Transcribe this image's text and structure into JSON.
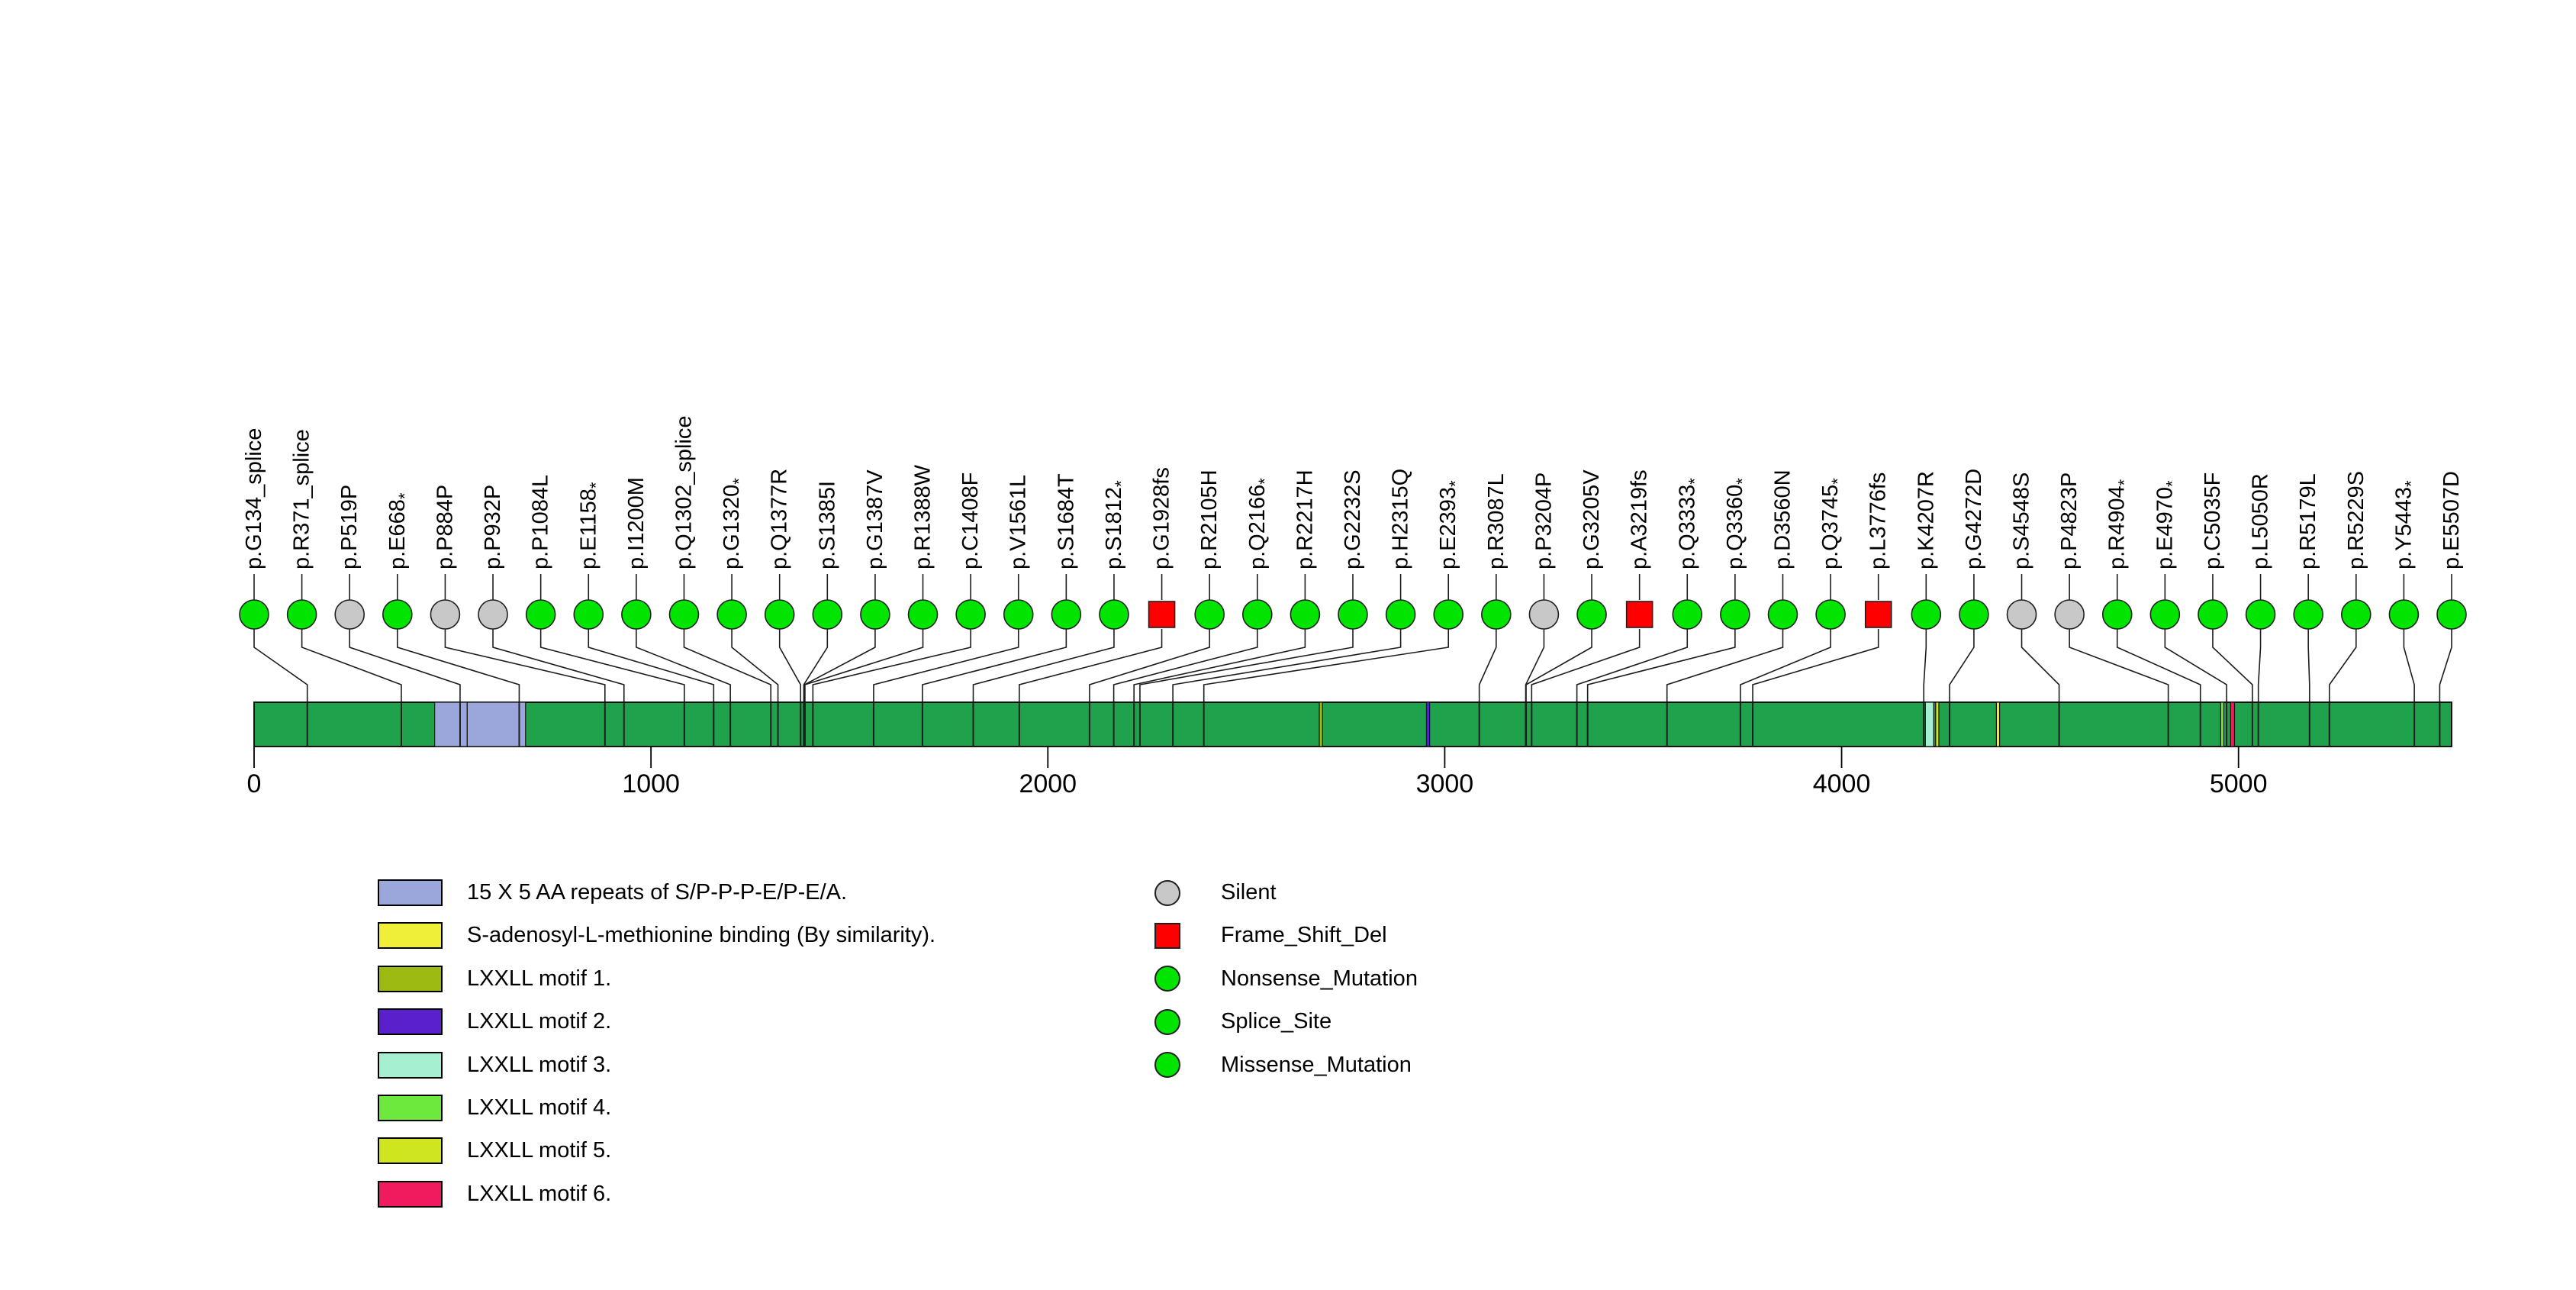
{
  "chart_data": {
    "type": "lollipop",
    "title": "",
    "protein_length": 5537,
    "axis_ticks": [
      0,
      1000,
      2000,
      3000,
      4000,
      5000
    ],
    "backbone_color": "#1FA24B",
    "mutation_type_colors": {
      "Silent": "#C8C8C8",
      "Frame_Shift_Del": "#FE0000",
      "Nonsense_Mutation": "#00E400",
      "Splice_Site": "#00E400",
      "Missense_Mutation": "#00E400"
    },
    "mutation_type_shapes": {
      "Silent": "circle",
      "Frame_Shift_Del": "square",
      "Nonsense_Mutation": "circle",
      "Splice_Site": "circle",
      "Missense_Mutation": "circle"
    },
    "mutations": [
      {
        "label": "p.G134_splice",
        "position": 134,
        "type": "Splice_Site"
      },
      {
        "label": "p.R371_splice",
        "position": 371,
        "type": "Splice_Site"
      },
      {
        "label": "p.P519P",
        "position": 519,
        "type": "Silent"
      },
      {
        "label": "p.E668*",
        "position": 668,
        "type": "Nonsense_Mutation"
      },
      {
        "label": "p.P884P",
        "position": 884,
        "type": "Silent"
      },
      {
        "label": "p.P932P",
        "position": 932,
        "type": "Silent"
      },
      {
        "label": "p.P1084L",
        "position": 1084,
        "type": "Missense_Mutation"
      },
      {
        "label": "p.E1158*",
        "position": 1158,
        "type": "Nonsense_Mutation"
      },
      {
        "label": "p.I1200M",
        "position": 1200,
        "type": "Missense_Mutation"
      },
      {
        "label": "p.Q1302_splice",
        "position": 1302,
        "type": "Splice_Site"
      },
      {
        "label": "p.G1320*",
        "position": 1320,
        "type": "Nonsense_Mutation"
      },
      {
        "label": "p.Q1377R",
        "position": 1377,
        "type": "Missense_Mutation"
      },
      {
        "label": "p.S1385I",
        "position": 1385,
        "type": "Missense_Mutation"
      },
      {
        "label": "p.G1387V",
        "position": 1387,
        "type": "Missense_Mutation"
      },
      {
        "label": "p.R1388W",
        "position": 1388,
        "type": "Missense_Mutation"
      },
      {
        "label": "p.C1408F",
        "position": 1408,
        "type": "Missense_Mutation"
      },
      {
        "label": "p.V1561L",
        "position": 1561,
        "type": "Missense_Mutation"
      },
      {
        "label": "p.S1684T",
        "position": 1684,
        "type": "Missense_Mutation"
      },
      {
        "label": "p.S1812*",
        "position": 1812,
        "type": "Nonsense_Mutation"
      },
      {
        "label": "p.G1928fs",
        "position": 1928,
        "type": "Frame_Shift_Del"
      },
      {
        "label": "p.R2105H",
        "position": 2105,
        "type": "Missense_Mutation"
      },
      {
        "label": "p.Q2166*",
        "position": 2166,
        "type": "Nonsense_Mutation"
      },
      {
        "label": "p.R2217H",
        "position": 2217,
        "type": "Missense_Mutation"
      },
      {
        "label": "p.G2232S",
        "position": 2232,
        "type": "Missense_Mutation"
      },
      {
        "label": "p.H2315Q",
        "position": 2315,
        "type": "Missense_Mutation"
      },
      {
        "label": "p.E2393*",
        "position": 2393,
        "type": "Nonsense_Mutation"
      },
      {
        "label": "p.R3087L",
        "position": 3087,
        "type": "Missense_Mutation"
      },
      {
        "label": "p.P3204P",
        "position": 3204,
        "type": "Silent"
      },
      {
        "label": "p.G3205V",
        "position": 3205,
        "type": "Missense_Mutation"
      },
      {
        "label": "p.A3219fs",
        "position": 3219,
        "type": "Frame_Shift_Del"
      },
      {
        "label": "p.Q3333*",
        "position": 3333,
        "type": "Nonsense_Mutation"
      },
      {
        "label": "p.Q3360*",
        "position": 3360,
        "type": "Nonsense_Mutation"
      },
      {
        "label": "p.D3560N",
        "position": 3560,
        "type": "Missense_Mutation"
      },
      {
        "label": "p.Q3745*",
        "position": 3745,
        "type": "Nonsense_Mutation"
      },
      {
        "label": "p.L3776fs",
        "position": 3776,
        "type": "Frame_Shift_Del"
      },
      {
        "label": "p.K4207R",
        "position": 4207,
        "type": "Missense_Mutation"
      },
      {
        "label": "p.G4272D",
        "position": 4272,
        "type": "Missense_Mutation"
      },
      {
        "label": "p.S4548S",
        "position": 4548,
        "type": "Silent"
      },
      {
        "label": "p.P4823P",
        "position": 4823,
        "type": "Silent"
      },
      {
        "label": "p.R4904*",
        "position": 4904,
        "type": "Nonsense_Mutation"
      },
      {
        "label": "p.E4970*",
        "position": 4970,
        "type": "Nonsense_Mutation"
      },
      {
        "label": "p.C5035F",
        "position": 5035,
        "type": "Missense_Mutation"
      },
      {
        "label": "p.L5050R",
        "position": 5050,
        "type": "Missense_Mutation"
      },
      {
        "label": "p.R5179L",
        "position": 5179,
        "type": "Missense_Mutation"
      },
      {
        "label": "p.R5229S",
        "position": 5229,
        "type": "Missense_Mutation"
      },
      {
        "label": "p.Y5443*",
        "position": 5443,
        "type": "Nonsense_Mutation"
      },
      {
        "label": "p.E5507D",
        "position": 5507,
        "type": "Missense_Mutation"
      }
    ],
    "domains": [
      {
        "label": "15 X 5 AA repeats of S/P-P-P-E/P-E/A.",
        "color": "#9BA7DB",
        "start": 455,
        "end": 537
      },
      {
        "label": "15 X 5 AA repeats of S/P-P-P-E/P-E/A.",
        "color": "#9BA7DB",
        "start": 537,
        "end": 684
      },
      {
        "label": "LXXLL motif 1.",
        "color": "#9CBA12",
        "start": 2684,
        "end": 2692
      },
      {
        "label": "LXXLL motif 2.",
        "color": "#5A20CB",
        "start": 2954,
        "end": 2962
      },
      {
        "label": "LXXLL motif 3.",
        "color": "#A6EFD1",
        "start": 4211,
        "end": 4232
      },
      {
        "label": "LXXLL motif 5.",
        "color": "#CEE51F",
        "start": 4237,
        "end": 4245
      },
      {
        "label": "S-adenosyl-L-methionine binding (By similarity).",
        "color": "#EFEF39",
        "start": 4390,
        "end": 4398
      },
      {
        "label": "LXXLL motif 4.",
        "color": "#6DE93D",
        "start": 4955,
        "end": 4963
      },
      {
        "label": "LXXLL motif 6.",
        "color": "#F01A5E",
        "start": 4980,
        "end": 4990
      }
    ],
    "legend_domains": [
      {
        "label": "15 X 5 AA repeats of S/P-P-P-E/P-E/A.",
        "color": "#9BA7DB"
      },
      {
        "label": "S-adenosyl-L-methionine binding (By similarity).",
        "color": "#EFEF39"
      },
      {
        "label": "LXXLL motif 1.",
        "color": "#9CBA12"
      },
      {
        "label": "LXXLL motif 2.",
        "color": "#5A20CB"
      },
      {
        "label": "LXXLL motif 3.",
        "color": "#A6EFD1"
      },
      {
        "label": "LXXLL motif 4.",
        "color": "#6DE93D"
      },
      {
        "label": "LXXLL motif 5.",
        "color": "#CEE51F"
      },
      {
        "label": "LXXLL motif 6.",
        "color": "#F01A5E"
      }
    ],
    "legend_types": [
      {
        "label": "Silent",
        "color": "#C8C8C8",
        "shape": "circle"
      },
      {
        "label": "Frame_Shift_Del",
        "color": "#FE0000",
        "shape": "square"
      },
      {
        "label": "Nonsense_Mutation",
        "color": "#00E400",
        "shape": "circle"
      },
      {
        "label": "Splice_Site",
        "color": "#00E400",
        "shape": "circle"
      },
      {
        "label": "Missense_Mutation",
        "color": "#00E400",
        "shape": "circle"
      }
    ]
  }
}
